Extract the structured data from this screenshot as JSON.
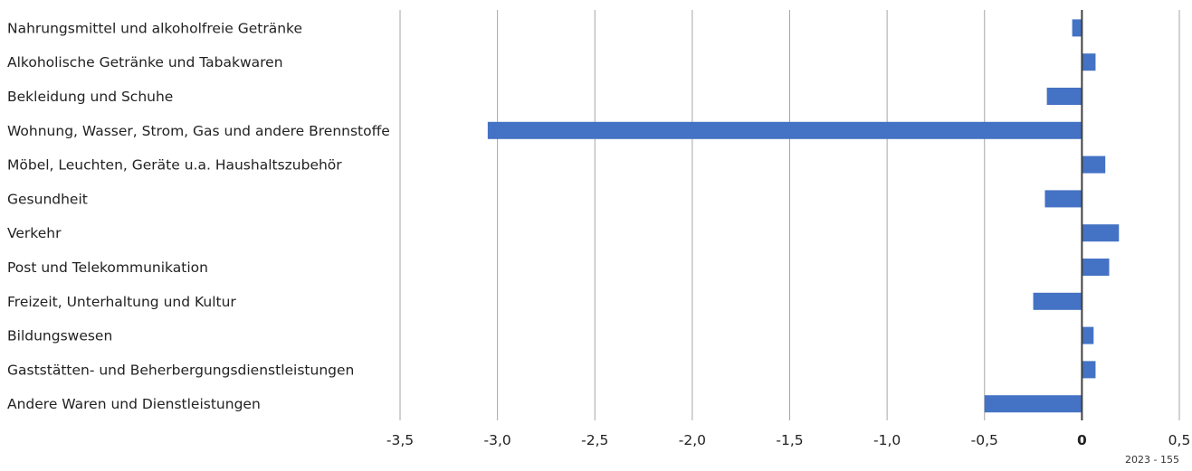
{
  "chart_data": {
    "type": "bar",
    "orientation": "horizontal",
    "categories": [
      "Nahrungsmittel und alkoholfreie Getränke",
      "Alkoholische Getränke und Tabakwaren",
      "Bekleidung und Schuhe",
      "Wohnung, Wasser, Strom, Gas und andere Brennstoffe",
      "Möbel, Leuchten, Geräte u.a. Haushaltszubehör",
      "Gesundheit",
      "Verkehr",
      "Post und Telekommunikation",
      "Freizeit, Unterhaltung und Kultur",
      "Bildungswesen",
      "Gaststätten- und Beherbergungsdienstleistungen",
      "Andere Waren und Dienstleistungen"
    ],
    "values": [
      -0.05,
      0.07,
      -0.18,
      -3.05,
      0.12,
      -0.19,
      0.19,
      0.14,
      -0.25,
      0.06,
      0.07,
      -0.5
    ],
    "xlim": [
      -3.5,
      0.5
    ],
    "xticks": [
      -3.5,
      -3.0,
      -2.5,
      -2.0,
      -1.5,
      -1.0,
      -0.5,
      0,
      0.5
    ],
    "xtick_labels": [
      "-3,5",
      "-3,0",
      "-2,5",
      "-2,0",
      "-1,5",
      "-1,0",
      "-0,5",
      "0",
      "0,5"
    ],
    "title": "",
    "xlabel": "",
    "ylabel": "",
    "grid": "vertical",
    "legend": "none",
    "bar_color": "#4472c4",
    "grid_color": "#a6a6a6",
    "zero_line_color": "#404040"
  },
  "footnote": "2023 - 155"
}
